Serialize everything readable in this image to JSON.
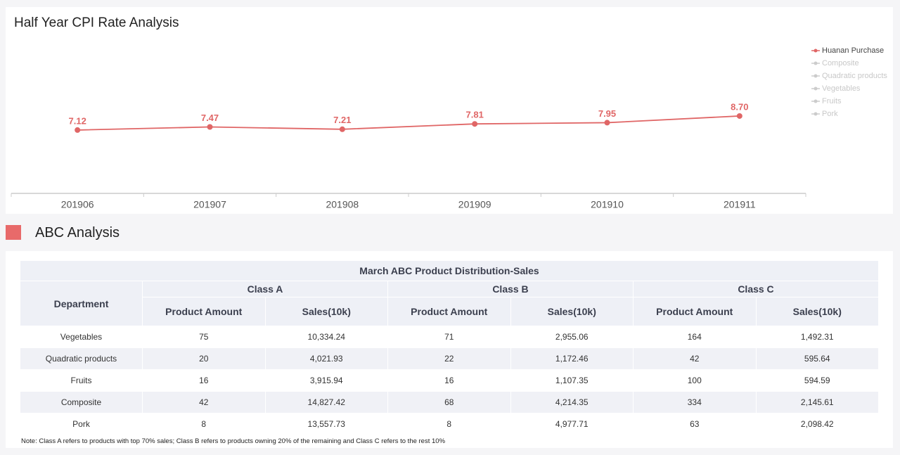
{
  "chart_data": {
    "type": "line",
    "title": "Half Year CPI Rate Analysis",
    "categories": [
      "201906",
      "201907",
      "201908",
      "201909",
      "201910",
      "201911"
    ],
    "series": [
      {
        "name": "Huanan Purchase",
        "color": "#e06666",
        "values": [
          7.12,
          7.47,
          7.21,
          7.81,
          7.95,
          8.7
        ],
        "value_labels": [
          "7.12",
          "7.47",
          "7.21",
          "7.81",
          "7.95",
          "8.70"
        ]
      },
      {
        "name": "Composite",
        "color": "#cccccc",
        "hidden": true,
        "values": [
          null,
          null,
          null,
          null,
          null,
          null
        ]
      },
      {
        "name": "Quadratic products",
        "color": "#cccccc",
        "hidden": true,
        "values": [
          null,
          null,
          null,
          null,
          null,
          null
        ]
      },
      {
        "name": "Vegetables",
        "color": "#cccccc",
        "hidden": true,
        "values": [
          null,
          null,
          null,
          null,
          null,
          null
        ]
      },
      {
        "name": "Fruits",
        "color": "#cccccc",
        "hidden": true,
        "values": [
          null,
          null,
          null,
          null,
          null,
          null
        ]
      },
      {
        "name": "Pork",
        "color": "#cccccc",
        "hidden": true,
        "values": [
          null,
          null,
          null,
          null,
          null,
          null
        ]
      }
    ],
    "ylim": [
      0,
      20
    ],
    "legend": "right"
  },
  "section": {
    "title": "ABC Analysis"
  },
  "table": {
    "title": "March ABC Product Distribution-Sales",
    "corner": "Department",
    "groups": [
      "Class A",
      "Class B",
      "Class C"
    ],
    "subheaders": [
      "Product Amount",
      "Sales(10k)"
    ],
    "rows": [
      [
        "Vegetables",
        "75",
        "10,334.24",
        "71",
        "2,955.06",
        "164",
        "1,492.31"
      ],
      [
        "Quadratic products",
        "20",
        "4,021.93",
        "22",
        "1,172.46",
        "42",
        "595.64"
      ],
      [
        "Fruits",
        "16",
        "3,915.94",
        "16",
        "1,107.35",
        "100",
        "594.59"
      ],
      [
        "Composite",
        "42",
        "14,827.42",
        "68",
        "4,214.35",
        "334",
        "2,145.61"
      ],
      [
        "Pork",
        "8",
        "13,557.73",
        "8",
        "4,977.71",
        "63",
        "2,098.42"
      ]
    ],
    "note": "Note: Class A refers to products with top 70% sales; Class B refers to products owning 20% of the remaining and Class C refers to the rest 10%"
  }
}
